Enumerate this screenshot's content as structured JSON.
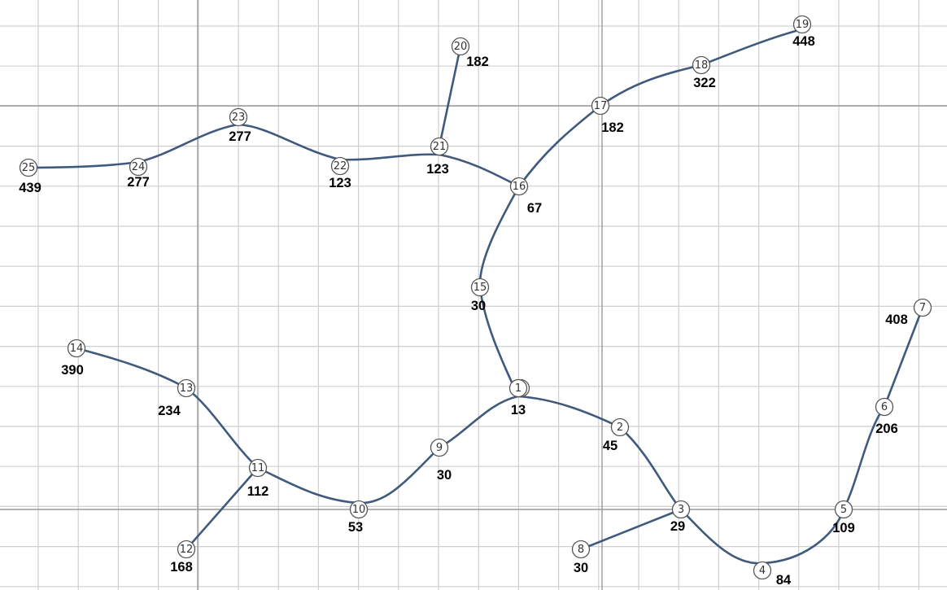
{
  "colors": {
    "edge": "#3f5a7d",
    "grid_minor": "#cfcfcf",
    "grid_major": "#9a9a9a",
    "background": "#ffffff"
  },
  "nodes": [
    {
      "id": "1",
      "value": "13"
    },
    {
      "id": "2",
      "value": "45"
    },
    {
      "id": "3",
      "value": "29"
    },
    {
      "id": "4",
      "value": "84"
    },
    {
      "id": "5",
      "value": "109"
    },
    {
      "id": "6",
      "value": "206"
    },
    {
      "id": "7",
      "value": "408"
    },
    {
      "id": "8",
      "value": "30"
    },
    {
      "id": "9",
      "value": "30"
    },
    {
      "id": "10",
      "value": "53"
    },
    {
      "id": "11",
      "value": "112"
    },
    {
      "id": "12",
      "value": "168"
    },
    {
      "id": "13",
      "value": "234"
    },
    {
      "id": "14",
      "value": "390"
    },
    {
      "id": "15",
      "value": "30"
    },
    {
      "id": "16",
      "value": "67"
    },
    {
      "id": "17",
      "value": "182"
    },
    {
      "id": "18",
      "value": "322"
    },
    {
      "id": "19",
      "value": "448"
    },
    {
      "id": "20",
      "value": "182"
    },
    {
      "id": "21",
      "value": "123"
    },
    {
      "id": "22",
      "value": "123"
    },
    {
      "id": "23",
      "value": "277"
    },
    {
      "id": "24",
      "value": "277"
    },
    {
      "id": "25",
      "value": "439"
    }
  ],
  "edges": [
    [
      "1",
      "2"
    ],
    [
      "2",
      "3"
    ],
    [
      "3",
      "4"
    ],
    [
      "4",
      "5"
    ],
    [
      "5",
      "6"
    ],
    [
      "6",
      "7"
    ],
    [
      "3",
      "8"
    ],
    [
      "1",
      "9"
    ],
    [
      "9",
      "10"
    ],
    [
      "10",
      "11"
    ],
    [
      "11",
      "13"
    ],
    [
      "13",
      "14"
    ],
    [
      "11",
      "12"
    ],
    [
      "1",
      "15"
    ],
    [
      "15",
      "16"
    ],
    [
      "16",
      "17"
    ],
    [
      "17",
      "18"
    ],
    [
      "18",
      "19"
    ],
    [
      "16",
      "21"
    ],
    [
      "21",
      "20"
    ],
    [
      "21",
      "22"
    ],
    [
      "22",
      "23"
    ],
    [
      "23",
      "24"
    ],
    [
      "24",
      "25"
    ]
  ]
}
